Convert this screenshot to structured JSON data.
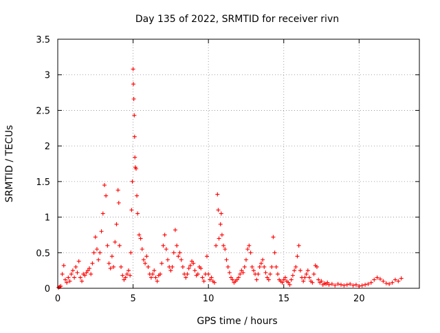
{
  "chart_data": {
    "type": "scatter",
    "title": "Day 135 of 2022, SRMTID for receiver rivn",
    "xlabel": "GPS time / hours",
    "ylabel": "SRMTID / TECUs",
    "xlim": [
      0,
      24
    ],
    "ylim": [
      0,
      3.5
    ],
    "x_ticks": [
      0,
      5,
      10,
      15,
      20
    ],
    "x_tick_labels": [
      "0",
      "5",
      "10",
      "15",
      "20"
    ],
    "y_ticks": [
      0,
      0.5,
      1,
      1.5,
      2,
      2.5,
      3,
      3.5
    ],
    "y_tick_labels": [
      "0",
      "0.5",
      "1",
      "1.5",
      "2",
      "2.5",
      "3",
      "3.5"
    ],
    "grid": true,
    "marker": "plus",
    "series_color": "#ff0000",
    "series": [
      {
        "name": "",
        "points": [
          [
            0.05,
            0.01
          ],
          [
            0.12,
            0.02
          ],
          [
            0.2,
            0.03
          ],
          [
            0.3,
            0.2
          ],
          [
            0.4,
            0.32
          ],
          [
            0.5,
            0.12
          ],
          [
            0.6,
            0.08
          ],
          [
            0.7,
            0.15
          ],
          [
            0.8,
            0.1
          ],
          [
            0.9,
            0.2
          ],
          [
            1.0,
            0.25
          ],
          [
            1.1,
            0.15
          ],
          [
            1.2,
            0.3
          ],
          [
            1.3,
            0.22
          ],
          [
            1.4,
            0.38
          ],
          [
            1.5,
            0.15
          ],
          [
            1.6,
            0.1
          ],
          [
            1.7,
            0.2
          ],
          [
            1.8,
            0.18
          ],
          [
            1.9,
            0.22
          ],
          [
            2.0,
            0.25
          ],
          [
            2.1,
            0.28
          ],
          [
            2.2,
            0.2
          ],
          [
            2.3,
            0.35
          ],
          [
            2.4,
            0.5
          ],
          [
            2.5,
            0.72
          ],
          [
            2.6,
            0.55
          ],
          [
            2.7,
            0.4
          ],
          [
            2.8,
            0.5
          ],
          [
            2.9,
            0.8
          ],
          [
            3.0,
            1.05
          ],
          [
            3.1,
            1.45
          ],
          [
            3.2,
            1.3
          ],
          [
            3.3,
            0.6
          ],
          [
            3.4,
            0.35
          ],
          [
            3.5,
            0.28
          ],
          [
            3.6,
            0.45
          ],
          [
            3.7,
            0.3
          ],
          [
            3.8,
            0.65
          ],
          [
            3.9,
            0.9
          ],
          [
            4.0,
            1.38
          ],
          [
            4.05,
            1.2
          ],
          [
            4.1,
            0.6
          ],
          [
            4.2,
            0.3
          ],
          [
            4.3,
            0.18
          ],
          [
            4.4,
            0.12
          ],
          [
            4.5,
            0.15
          ],
          [
            4.6,
            0.2
          ],
          [
            4.7,
            0.25
          ],
          [
            4.8,
            0.18
          ],
          [
            4.85,
            0.5
          ],
          [
            4.9,
            1.1
          ],
          [
            4.95,
            1.5
          ],
          [
            5.0,
            3.08
          ],
          [
            5.02,
            2.87
          ],
          [
            5.05,
            2.66
          ],
          [
            5.08,
            2.43
          ],
          [
            5.1,
            2.13
          ],
          [
            5.12,
            1.84
          ],
          [
            5.15,
            1.7
          ],
          [
            5.2,
            1.68
          ],
          [
            5.25,
            1.3
          ],
          [
            5.3,
            1.05
          ],
          [
            5.4,
            0.75
          ],
          [
            5.5,
            0.7
          ],
          [
            5.6,
            0.55
          ],
          [
            5.7,
            0.4
          ],
          [
            5.8,
            0.35
          ],
          [
            5.9,
            0.45
          ],
          [
            6.0,
            0.3
          ],
          [
            6.1,
            0.2
          ],
          [
            6.2,
            0.15
          ],
          [
            6.3,
            0.2
          ],
          [
            6.4,
            0.25
          ],
          [
            6.5,
            0.15
          ],
          [
            6.6,
            0.1
          ],
          [
            6.7,
            0.18
          ],
          [
            6.8,
            0.2
          ],
          [
            6.9,
            0.35
          ],
          [
            7.0,
            0.6
          ],
          [
            7.1,
            0.75
          ],
          [
            7.2,
            0.55
          ],
          [
            7.3,
            0.4
          ],
          [
            7.4,
            0.3
          ],
          [
            7.5,
            0.25
          ],
          [
            7.6,
            0.3
          ],
          [
            7.7,
            0.5
          ],
          [
            7.8,
            0.82
          ],
          [
            7.9,
            0.6
          ],
          [
            8.0,
            0.45
          ],
          [
            8.1,
            0.5
          ],
          [
            8.2,
            0.4
          ],
          [
            8.3,
            0.3
          ],
          [
            8.4,
            0.2
          ],
          [
            8.5,
            0.15
          ],
          [
            8.6,
            0.2
          ],
          [
            8.7,
            0.28
          ],
          [
            8.8,
            0.32
          ],
          [
            8.9,
            0.38
          ],
          [
            9.0,
            0.35
          ],
          [
            9.1,
            0.25
          ],
          [
            9.2,
            0.18
          ],
          [
            9.3,
            0.2
          ],
          [
            9.4,
            0.3
          ],
          [
            9.5,
            0.28
          ],
          [
            9.6,
            0.15
          ],
          [
            9.7,
            0.1
          ],
          [
            9.8,
            0.2
          ],
          [
            9.9,
            0.45
          ],
          [
            10.0,
            0.2
          ],
          [
            10.1,
            0.12
          ],
          [
            10.2,
            0.15
          ],
          [
            10.3,
            0.1
          ],
          [
            10.4,
            0.08
          ],
          [
            10.5,
            0.6
          ],
          [
            10.6,
            1.32
          ],
          [
            10.65,
            1.1
          ],
          [
            10.7,
            0.7
          ],
          [
            10.8,
            0.9
          ],
          [
            10.85,
            1.05
          ],
          [
            10.9,
            0.75
          ],
          [
            11.0,
            0.6
          ],
          [
            11.1,
            0.55
          ],
          [
            11.2,
            0.4
          ],
          [
            11.3,
            0.3
          ],
          [
            11.4,
            0.22
          ],
          [
            11.5,
            0.15
          ],
          [
            11.6,
            0.12
          ],
          [
            11.7,
            0.08
          ],
          [
            11.8,
            0.1
          ],
          [
            11.9,
            0.12
          ],
          [
            12.0,
            0.15
          ],
          [
            12.1,
            0.2
          ],
          [
            12.2,
            0.25
          ],
          [
            12.3,
            0.22
          ],
          [
            12.4,
            0.3
          ],
          [
            12.5,
            0.4
          ],
          [
            12.6,
            0.55
          ],
          [
            12.7,
            0.6
          ],
          [
            12.8,
            0.5
          ],
          [
            12.9,
            0.3
          ],
          [
            13.0,
            0.25
          ],
          [
            13.1,
            0.2
          ],
          [
            13.2,
            0.12
          ],
          [
            13.3,
            0.2
          ],
          [
            13.4,
            0.3
          ],
          [
            13.5,
            0.35
          ],
          [
            13.6,
            0.4
          ],
          [
            13.7,
            0.3
          ],
          [
            13.8,
            0.22
          ],
          [
            13.9,
            0.15
          ],
          [
            14.0,
            0.12
          ],
          [
            14.1,
            0.2
          ],
          [
            14.2,
            0.3
          ],
          [
            14.3,
            0.72
          ],
          [
            14.4,
            0.5
          ],
          [
            14.5,
            0.3
          ],
          [
            14.6,
            0.2
          ],
          [
            14.7,
            0.12
          ],
          [
            14.8,
            0.1
          ],
          [
            14.9,
            0.08
          ],
          [
            15.0,
            0.12
          ],
          [
            15.1,
            0.15
          ],
          [
            15.2,
            0.1
          ],
          [
            15.3,
            0.08
          ],
          [
            15.4,
            0.05
          ],
          [
            15.5,
            0.12
          ],
          [
            15.6,
            0.18
          ],
          [
            15.7,
            0.25
          ],
          [
            15.8,
            0.3
          ],
          [
            15.9,
            0.45
          ],
          [
            16.0,
            0.6
          ],
          [
            16.1,
            0.25
          ],
          [
            16.2,
            0.15
          ],
          [
            16.3,
            0.1
          ],
          [
            16.4,
            0.15
          ],
          [
            16.5,
            0.2
          ],
          [
            16.6,
            0.25
          ],
          [
            16.7,
            0.15
          ],
          [
            16.8,
            0.1
          ],
          [
            16.9,
            0.08
          ],
          [
            17.0,
            0.2
          ],
          [
            17.1,
            0.32
          ],
          [
            17.2,
            0.3
          ],
          [
            17.3,
            0.12
          ],
          [
            17.4,
            0.08
          ],
          [
            17.5,
            0.1
          ],
          [
            17.6,
            0.05
          ],
          [
            17.7,
            0.07
          ],
          [
            17.8,
            0.06
          ],
          [
            17.9,
            0.08
          ],
          [
            18.0,
            0.05
          ],
          [
            18.2,
            0.06
          ],
          [
            18.4,
            0.04
          ],
          [
            18.6,
            0.06
          ],
          [
            18.8,
            0.05
          ],
          [
            19.0,
            0.04
          ],
          [
            19.2,
            0.05
          ],
          [
            19.4,
            0.06
          ],
          [
            19.6,
            0.04
          ],
          [
            19.8,
            0.05
          ],
          [
            20.0,
            0.03
          ],
          [
            20.2,
            0.04
          ],
          [
            20.4,
            0.05
          ],
          [
            20.6,
            0.06
          ],
          [
            20.8,
            0.08
          ],
          [
            21.0,
            0.12
          ],
          [
            21.2,
            0.15
          ],
          [
            21.4,
            0.13
          ],
          [
            21.6,
            0.1
          ],
          [
            21.8,
            0.07
          ],
          [
            22.0,
            0.06
          ],
          [
            22.2,
            0.08
          ],
          [
            22.4,
            0.12
          ],
          [
            22.6,
            0.1
          ],
          [
            22.8,
            0.14
          ]
        ]
      }
    ]
  }
}
